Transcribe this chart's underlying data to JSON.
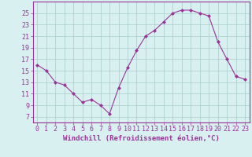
{
  "x": [
    0,
    1,
    2,
    3,
    4,
    5,
    6,
    7,
    8,
    9,
    10,
    11,
    12,
    13,
    14,
    15,
    16,
    17,
    18,
    19,
    20,
    21,
    22,
    23
  ],
  "y": [
    16,
    15,
    13,
    12.5,
    11,
    9.5,
    10,
    9,
    7.5,
    12,
    15.5,
    18.5,
    21,
    22,
    23.5,
    25,
    25.5,
    25.5,
    25,
    24.5,
    20,
    17,
    14,
    13.5
  ],
  "xlabel": "Windchill (Refroidissement éolien,°C)",
  "ylim": [
    6,
    27
  ],
  "xlim": [
    -0.5,
    23.5
  ],
  "yticks": [
    7,
    9,
    11,
    13,
    15,
    17,
    19,
    21,
    23,
    25
  ],
  "xticks": [
    0,
    1,
    2,
    3,
    4,
    5,
    6,
    7,
    8,
    9,
    10,
    11,
    12,
    13,
    14,
    15,
    16,
    17,
    18,
    19,
    20,
    21,
    22,
    23
  ],
  "line_color": "#993399",
  "marker_color": "#993399",
  "bg_color": "#d8f0f0",
  "grid_color": "#aacccc",
  "xlabel_fontsize": 6.5,
  "tick_fontsize": 6.0
}
